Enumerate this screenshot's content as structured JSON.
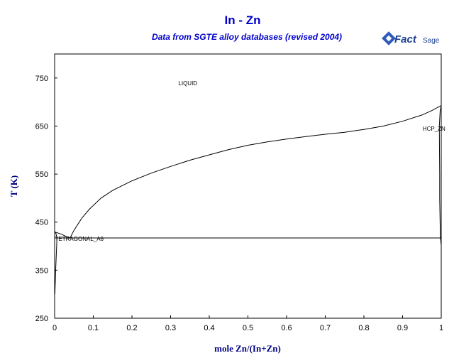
{
  "chart_data": {
    "type": "line",
    "title": "In - Zn",
    "subtitle": "Data from SGTE alloy databases (revised 2004)",
    "xlabel": "mole Zn/(In+Zn)",
    "ylabel": "T (K)",
    "xlim": [
      0,
      1
    ],
    "ylim": [
      250,
      800
    ],
    "x_ticks": [
      "0",
      "0.1",
      "0.2",
      "0.3",
      "0.4",
      "0.5",
      "0.6",
      "0.7",
      "0.8",
      "0.9",
      "1"
    ],
    "y_ticks": [
      "250",
      "350",
      "450",
      "550",
      "650",
      "750"
    ],
    "grid": false,
    "phase_labels": [
      {
        "text": "LIQUID",
        "x": 0.32,
        "y": 735
      },
      {
        "text": "HCP_ZN",
        "x": 0.952,
        "y": 640
      },
      {
        "text": "TETRAGONAL_A6",
        "x": 0.001,
        "y": 411
      }
    ],
    "series": [
      {
        "id": "liquidus-zn",
        "values": [
          [
            0.04,
            417
          ],
          [
            0.05,
            433
          ],
          [
            0.07,
            458
          ],
          [
            0.09,
            477
          ],
          [
            0.12,
            500
          ],
          [
            0.15,
            516
          ],
          [
            0.2,
            536
          ],
          [
            0.25,
            552
          ],
          [
            0.3,
            566
          ],
          [
            0.35,
            579
          ],
          [
            0.4,
            590
          ],
          [
            0.45,
            601
          ],
          [
            0.5,
            610
          ],
          [
            0.55,
            617
          ],
          [
            0.6,
            623
          ],
          [
            0.65,
            628
          ],
          [
            0.7,
            633
          ],
          [
            0.75,
            637
          ],
          [
            0.8,
            643
          ],
          [
            0.85,
            650
          ],
          [
            0.9,
            660
          ],
          [
            0.95,
            673
          ],
          [
            0.975,
            682
          ],
          [
            1.0,
            692.7
          ]
        ]
      },
      {
        "id": "liquidus-in",
        "values": [
          [
            0.0,
            429.7
          ],
          [
            0.01,
            427
          ],
          [
            0.02,
            424
          ],
          [
            0.03,
            420
          ],
          [
            0.04,
            417
          ]
        ]
      },
      {
        "id": "eutectic-line",
        "values": [
          [
            0.0,
            417
          ],
          [
            1.0,
            417
          ]
        ]
      },
      {
        "id": "tetragonal-solvus",
        "values": [
          [
            0.0,
            429.7
          ],
          [
            0.003,
            428
          ],
          [
            0.006,
            417
          ],
          [
            0.005,
            395
          ],
          [
            0.003,
            355
          ],
          [
            0.0015,
            320
          ],
          [
            0.0005,
            300
          ]
        ]
      },
      {
        "id": "hcp-solidus",
        "values": [
          [
            1.0,
            692.7
          ],
          [
            0.997,
            680
          ],
          [
            0.995,
            650
          ],
          [
            0.9955,
            600
          ],
          [
            0.996,
            550
          ],
          [
            0.996,
            500
          ],
          [
            0.997,
            450
          ],
          [
            0.998,
            417
          ]
        ]
      },
      {
        "id": "hcp-solvus",
        "values": [
          [
            0.998,
            417
          ],
          [
            0.999,
            410
          ],
          [
            0.9995,
            404
          ]
        ]
      }
    ]
  },
  "logo": {
    "brand_main": "Fact",
    "brand_sage": "Sage"
  }
}
